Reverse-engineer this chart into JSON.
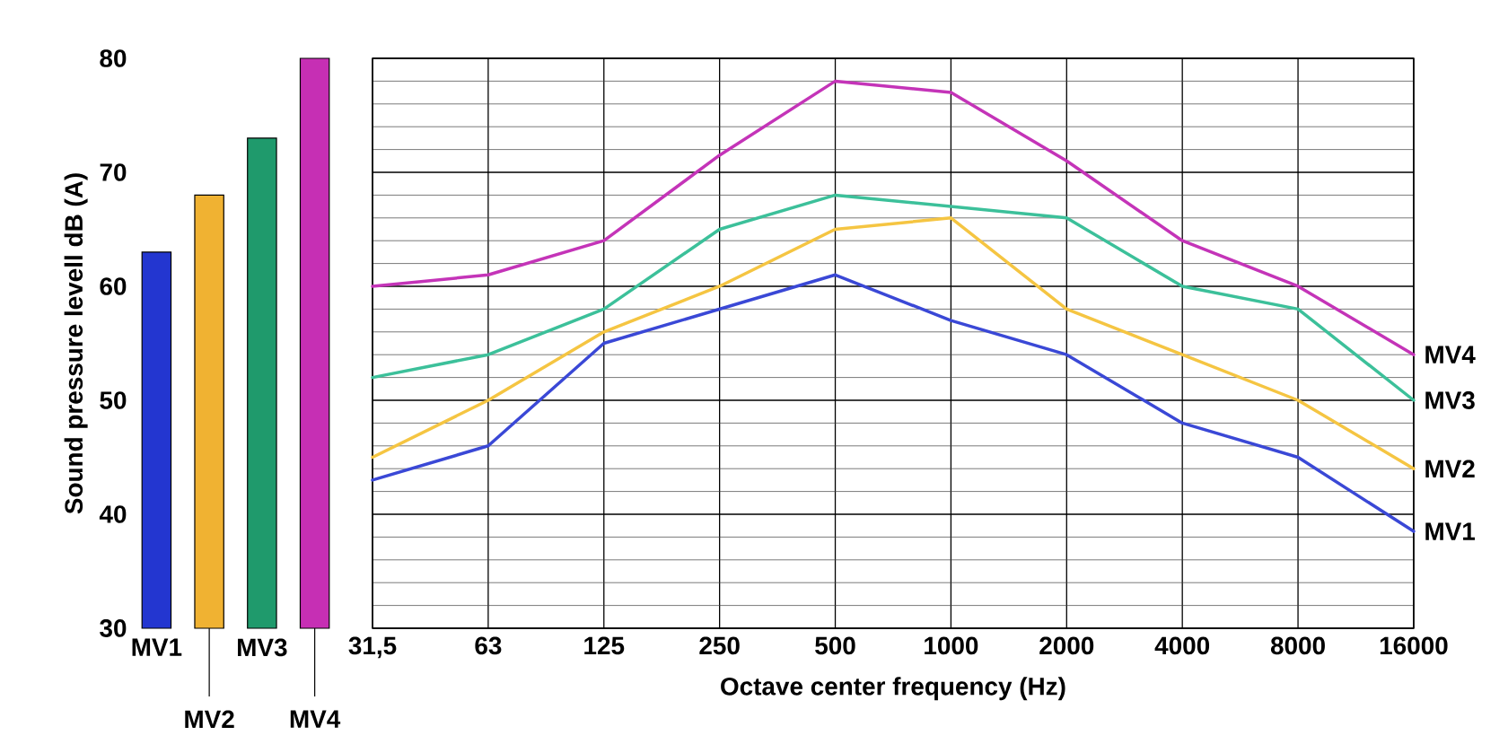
{
  "chart_data": [
    {
      "type": "bar",
      "ylabel": "Sound pressure levell dB (A)",
      "categories": [
        "MV1",
        "MV2",
        "MV3",
        "MV4"
      ],
      "values": [
        63,
        68,
        73,
        80
      ],
      "colors": [
        "#2336d0",
        "#f0b232",
        "#1f9a6c",
        "#c62fb4"
      ],
      "ylim": [
        30,
        80
      ],
      "yticks": [
        30,
        40,
        50,
        60,
        70,
        80
      ]
    },
    {
      "type": "line",
      "xlabel": "Octave center frequency (Hz)",
      "categories": [
        "31,5",
        "63",
        "125",
        "250",
        "500",
        "1000",
        "2000",
        "4000",
        "8000",
        "16000"
      ],
      "series": [
        {
          "name": "MV1",
          "color": "#3a48d6",
          "values": [
            43,
            46,
            55,
            58,
            61,
            57,
            54,
            48,
            45,
            38.5
          ]
        },
        {
          "name": "MV2",
          "color": "#f5c542",
          "values": [
            45,
            50,
            56,
            60,
            65,
            66,
            58,
            54,
            50,
            44
          ]
        },
        {
          "name": "MV3",
          "color": "#3cc09a",
          "values": [
            52,
            54,
            58,
            65,
            68,
            67,
            66,
            60,
            58,
            50
          ]
        },
        {
          "name": "MV4",
          "color": "#c434b8",
          "values": [
            60,
            61,
            64,
            71.5,
            78,
            77,
            71,
            64,
            60,
            54
          ]
        }
      ],
      "ylim": [
        30,
        80
      ],
      "yticks": [
        30,
        40,
        50,
        60,
        70,
        80
      ],
      "grid": true,
      "tick_labels": "x"
    }
  ]
}
